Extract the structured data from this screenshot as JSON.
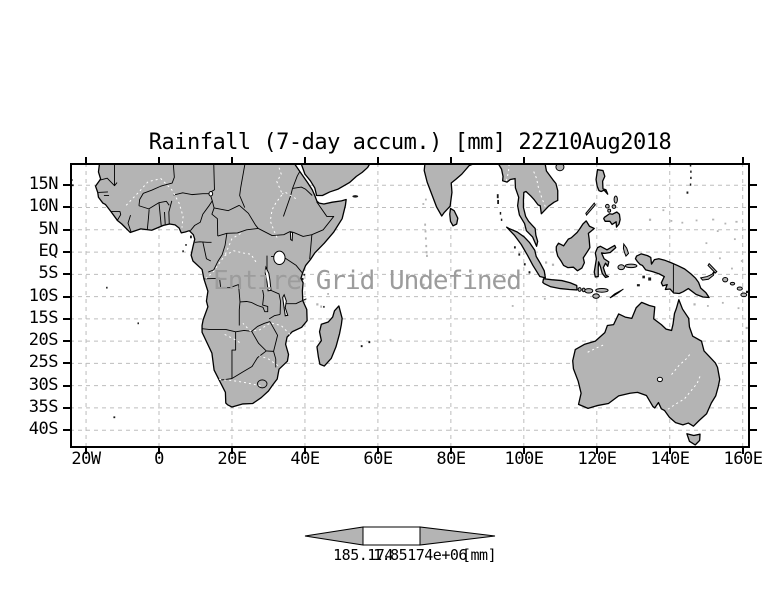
{
  "title": {
    "text": "Rainfall (7-day accum.) [mm] 22Z10Aug2018"
  },
  "map": {
    "overlay_text": "Entire Grid Undefined"
  },
  "axes": {
    "y": {
      "ticks": [
        {
          "label": "15N",
          "lat": 15
        },
        {
          "label": "10N",
          "lat": 10
        },
        {
          "label": "5N",
          "lat": 5
        },
        {
          "label": "EQ",
          "lat": 0
        },
        {
          "label": "5S",
          "lat": -5
        },
        {
          "label": "10S",
          "lat": -10
        },
        {
          "label": "15S",
          "lat": -15
        },
        {
          "label": "20S",
          "lat": -20
        },
        {
          "label": "25S",
          "lat": -25
        },
        {
          "label": "30S",
          "lat": -30
        },
        {
          "label": "35S",
          "lat": -35
        },
        {
          "label": "40S",
          "lat": -40
        }
      ]
    },
    "x": {
      "ticks": [
        {
          "label": "20W",
          "lon": -20
        },
        {
          "label": "0",
          "lon": 0
        },
        {
          "label": "20E",
          "lon": 20
        },
        {
          "label": "40E",
          "lon": 40
        },
        {
          "label": "60E",
          "lon": 60
        },
        {
          "label": "80E",
          "lon": 80
        },
        {
          "label": "100E",
          "lon": 100
        },
        {
          "label": "120E",
          "lon": 120
        },
        {
          "label": "140E",
          "lon": 140
        },
        {
          "label": "160E",
          "lon": 160
        }
      ]
    }
  },
  "colorbar": {
    "left_value": "185.174",
    "right_value": "1.85174e+06",
    "unit": "[mm]"
  },
  "colors": {
    "land": "#b4b4b4",
    "gridline": "#bdbdbd",
    "overlay_text": "#9c9c9c",
    "frame": "#000000",
    "ocean": "#ffffff"
  }
}
